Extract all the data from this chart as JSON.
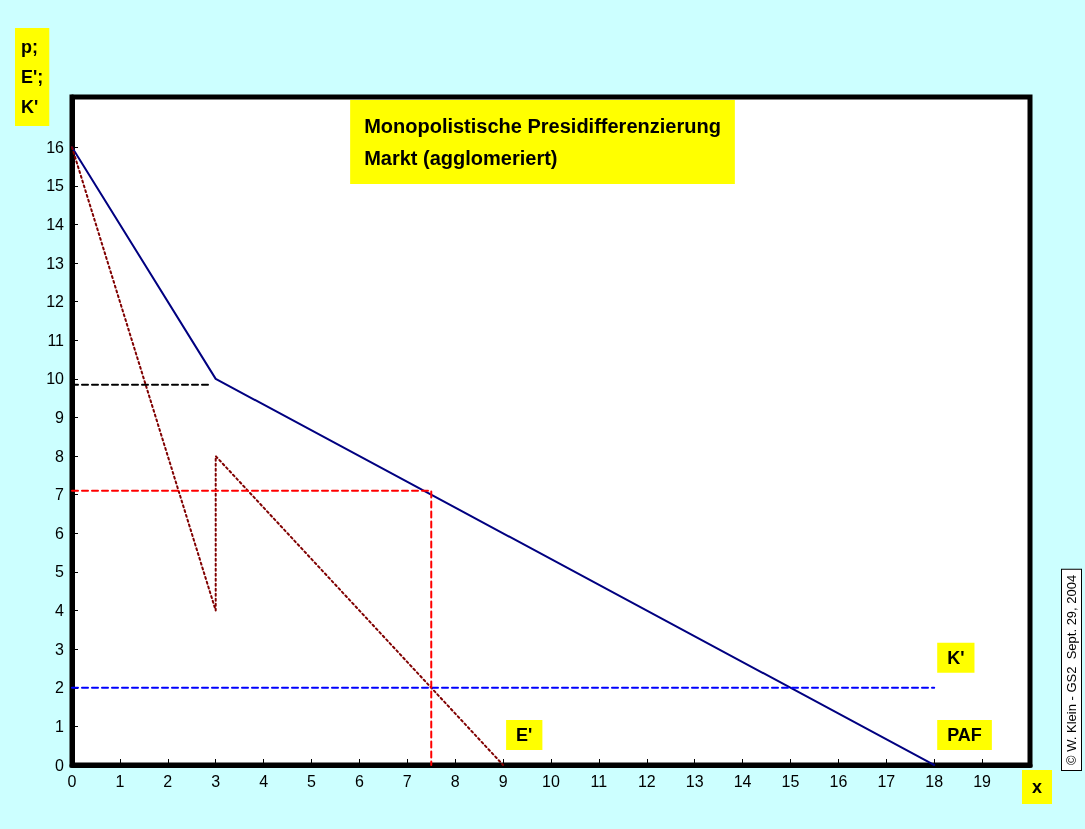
{
  "chart_data": {
    "type": "line",
    "title": "Monopolistische Presidifferenzierung\nMarkt (agglomeriert)",
    "xlabel": "x",
    "ylabel": "p;\nE';\nK'",
    "annotations": [
      "© W. Klein - GS2  Sept. 29, 2004"
    ],
    "xlim": [
      0,
      20
    ],
    "xticks": [
      0,
      1,
      2,
      3,
      4,
      5,
      6,
      7,
      8,
      9,
      10,
      11,
      12,
      13,
      14,
      15,
      16,
      17,
      18,
      19,
      {
        "value": 20,
        "label": null
      }
    ],
    "ylim": [
      0,
      17.3
    ],
    "yticks": [
      0,
      1,
      2,
      3,
      4,
      5,
      6,
      7,
      8,
      9,
      10,
      11,
      12,
      13,
      14,
      15,
      16
    ],
    "grid": false,
    "legend": false,
    "marker": "none",
    "series": [
      {
        "name": "PAF",
        "color": "#000080",
        "line_style": "solid",
        "x": [
          0,
          3,
          18
        ],
        "values": [
          16,
          10,
          0
        ]
      },
      {
        "name": "E'",
        "color": "#800000",
        "line_style": "dotted",
        "x": [
          0,
          3,
          3,
          9
        ],
        "values": [
          16,
          4,
          8,
          0
        ]
      },
      {
        "name": "K'",
        "color": "#0000ff",
        "line_style": "dashed",
        "x": [
          0,
          18
        ],
        "values": [
          2,
          2
        ]
      },
      {
        "color": "#ff0000",
        "line_style": "dashed",
        "x": [
          0,
          7.5,
          7.5
        ],
        "values": [
          7.1,
          7.1,
          0
        ]
      },
      {
        "color": "#000000",
        "line_style": "dashed",
        "x": [
          0,
          2.9
        ],
        "values": [
          9.85,
          9.85
        ]
      }
    ]
  }
}
